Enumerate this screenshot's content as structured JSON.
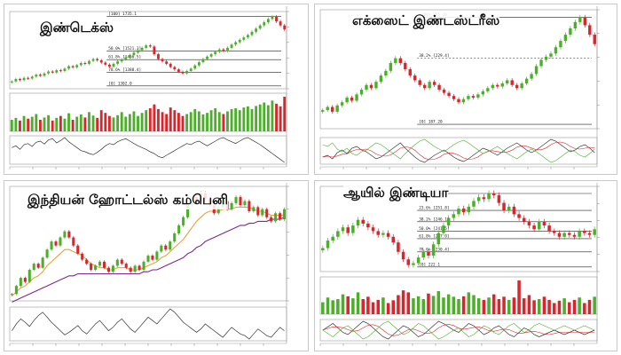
{
  "colors": {
    "up": "#4caf2a",
    "down": "#d9252b",
    "avg1": "#e8a23c",
    "avg2": "#7a2a8a",
    "osc": "#333333",
    "grid": "#dddddd"
  },
  "panels": [
    {
      "title": "இண்டெக்ஸ்",
      "volume": true,
      "indicator": "single",
      "levels": [
        {
          "label": "[100] 1735.1",
          "value": 1735
        },
        {
          "label": "50.0% [1521.3]",
          "value": 1521
        },
        {
          "label": "61.8% [1466.5]",
          "value": 1466
        },
        {
          "label": "78.6% [1388.4]",
          "value": 1388
        },
        {
          "label": "[0] 1302.0",
          "value": 1302
        }
      ]
    },
    {
      "title": "எக்ஸைட் இண்டஸ்ட்ரீஸ்",
      "volume": false,
      "indicator": "multi",
      "levels": [
        {
          "label": "[100] 255.30",
          "value": 255
        },
        {
          "label": "38.2% [229.4]",
          "value": 229
        },
        {
          "label": "[0] 187.20",
          "value": 187
        }
      ]
    },
    {
      "title": "இந்தியன் ஹோட்டல்ஸ் கம்பெனி",
      "volume": false,
      "indicator": "single",
      "levels": []
    },
    {
      "title": "ஆயில் இண்டியா",
      "volume": true,
      "indicator": "multi",
      "levels": [
        {
          "label": "[100] 261.0",
          "value": 261
        },
        {
          "label": "23.6% [251.8]",
          "value": 252
        },
        {
          "label": "38.2% [246.1]",
          "value": 246
        },
        {
          "label": "50.0% [241.5]",
          "value": 241
        },
        {
          "label": "61.8% [237.0]",
          "value": 237
        },
        {
          "label": "78.6% [230.4]",
          "value": 230
        },
        {
          "label": "[0] 222.1",
          "value": 222
        }
      ]
    }
  ],
  "chart_data": [
    {
      "type": "candlestick",
      "title": "இண்டெக்ஸ்",
      "close": [
        1330,
        1345,
        1338,
        1352,
        1348,
        1360,
        1372,
        1365,
        1380,
        1392,
        1385,
        1400,
        1395,
        1410,
        1425,
        1418,
        1432,
        1445,
        1440,
        1458,
        1470,
        1462,
        1448,
        1435,
        1422,
        1440,
        1455,
        1468,
        1480,
        1495,
        1510,
        1525,
        1540,
        1555,
        1548,
        1500,
        1470,
        1455,
        1440,
        1420,
        1405,
        1390,
        1380,
        1395,
        1410,
        1430,
        1450,
        1470,
        1485,
        1500,
        1515,
        1530,
        1520,
        1540,
        1560,
        1575,
        1590,
        1605,
        1620,
        1640,
        1660,
        1680,
        1700,
        1720,
        1735,
        1705,
        1680,
        1655
      ],
      "volume": [
        30,
        35,
        28,
        40,
        33,
        38,
        45,
        30,
        36,
        42,
        28,
        35,
        40,
        33,
        47,
        30,
        38,
        44,
        36,
        50,
        41,
        35,
        55,
        48,
        40,
        36,
        42,
        50,
        38,
        45,
        52,
        40,
        48,
        55,
        60,
        70,
        58,
        50,
        45,
        62,
        55,
        48,
        40,
        45,
        50,
        58,
        52,
        44,
        48,
        55,
        60,
        50,
        45,
        52,
        58,
        60,
        55,
        62,
        65,
        58,
        66,
        70,
        75,
        68,
        80,
        72,
        65,
        90
      ],
      "indicator": [
        55,
        58,
        52,
        60,
        62,
        57,
        64,
        66,
        61,
        68,
        70,
        63,
        67,
        72,
        65,
        60,
        55,
        50,
        48,
        45,
        43,
        47,
        52,
        58,
        62,
        60,
        65,
        68,
        70,
        66,
        62,
        58,
        55,
        52,
        48,
        45,
        40,
        38,
        42,
        46,
        50,
        54,
        58,
        62,
        60,
        64,
        66,
        62,
        58,
        62,
        66,
        70,
        72,
        68,
        65,
        62,
        66,
        70,
        72,
        68,
        64,
        60,
        55,
        50,
        45,
        40,
        35,
        30
      ]
    },
    {
      "type": "candlestick",
      "title": "எக்ஸைட் இண்டஸ்ட்ரீஸ்",
      "close": [
        196,
        198,
        195,
        199,
        201,
        204,
        202,
        206,
        209,
        212,
        210,
        214,
        218,
        221,
        226,
        229,
        226,
        222,
        218,
        215,
        212,
        210,
        214,
        212,
        209,
        207,
        205,
        203,
        201,
        203,
        205,
        204,
        206,
        208,
        210,
        212,
        211,
        213,
        215,
        212,
        210,
        213,
        216,
        219,
        224,
        228,
        230,
        232,
        236,
        240,
        244,
        248,
        252,
        255,
        250,
        244,
        238
      ],
      "indicator": [
        50,
        52,
        48,
        55,
        58,
        54,
        60,
        62,
        58,
        56,
        52,
        48,
        50,
        54,
        58,
        62,
        66,
        60,
        55,
        50,
        46,
        44,
        48,
        52,
        55,
        58,
        54,
        50,
        47,
        45,
        48,
        52,
        56,
        60,
        58,
        55,
        52,
        56,
        60,
        63,
        66,
        62,
        58,
        55,
        58,
        62,
        66,
        70,
        68,
        64,
        60,
        56,
        58,
        62,
        64,
        60,
        55
      ]
    },
    {
      "type": "candlestick",
      "title": "இந்தியன் ஹோட்டல்ஸ் கம்பெனி",
      "close": [
        100,
        104,
        108,
        106,
        112,
        115,
        113,
        118,
        122,
        126,
        124,
        128,
        131,
        128,
        124,
        120,
        117,
        115,
        112,
        114,
        116,
        113,
        111,
        114,
        117,
        115,
        113,
        111,
        114,
        112,
        116,
        119,
        117,
        121,
        124,
        122,
        126,
        130,
        134,
        138,
        144,
        148,
        146,
        150,
        147,
        144,
        140,
        143,
        146,
        142,
        145,
        148,
        144,
        146,
        141,
        143,
        139,
        142,
        138,
        136,
        140,
        137,
        142
      ],
      "average1": [
        99,
        101,
        103,
        104,
        106,
        108,
        109,
        111,
        114,
        116,
        118,
        120,
        122,
        122,
        121,
        120,
        119,
        117,
        115,
        114,
        113,
        113,
        112,
        112,
        113,
        113,
        113,
        112,
        112,
        112,
        113,
        114,
        115,
        116,
        118,
        119,
        121,
        123,
        125,
        127,
        130,
        133,
        136,
        138,
        140,
        141,
        141,
        141,
        142,
        142,
        142,
        143,
        143,
        143,
        143,
        142,
        141,
        141,
        140,
        139,
        139,
        139,
        139
      ],
      "average2": [
        96,
        97,
        98,
        99,
        100,
        101,
        102,
        103,
        104,
        105,
        106,
        107,
        108,
        109,
        109,
        110,
        110,
        110,
        110,
        110,
        110,
        110,
        110,
        110,
        110,
        110,
        110,
        110,
        110,
        110,
        111,
        111,
        112,
        112,
        113,
        114,
        115,
        116,
        117,
        118,
        120,
        121,
        123,
        124,
        126,
        127,
        128,
        129,
        130,
        131,
        132,
        133,
        134,
        134,
        135,
        135,
        136,
        136,
        136,
        137,
        137,
        137,
        138
      ],
      "indicator": [
        50,
        58,
        64,
        60,
        55,
        62,
        68,
        72,
        66,
        60,
        55,
        50,
        45,
        48,
        52,
        56,
        50,
        46,
        52,
        58,
        62,
        56,
        50,
        54,
        60,
        64,
        58,
        52,
        48,
        54,
        60,
        66,
        62,
        58,
        64,
        70,
        76,
        72,
        66,
        60,
        56,
        52,
        48,
        52,
        58,
        54,
        50,
        46,
        42,
        48,
        54,
        50,
        46,
        44,
        40,
        46,
        52,
        48,
        44,
        42,
        48,
        54,
        50
      ]
    },
    {
      "type": "candlestick",
      "title": "ஆயில் இண்டியா",
      "close": [
        232,
        236,
        238,
        241,
        243,
        240,
        244,
        247,
        245,
        243,
        241,
        239,
        240,
        238,
        235,
        230,
        226,
        223,
        224,
        227,
        230,
        228,
        234,
        240,
        244,
        248,
        250,
        253,
        251,
        254,
        257,
        259,
        258,
        261,
        260,
        256,
        252,
        254,
        250,
        248,
        246,
        244,
        242,
        246,
        244,
        241,
        240,
        238,
        240,
        239,
        238,
        241,
        240,
        239,
        242
      ],
      "volume": [
        30,
        42,
        35,
        38,
        50,
        45,
        40,
        55,
        38,
        44,
        30,
        36,
        42,
        28,
        35,
        48,
        60,
        55,
        40,
        45,
        38,
        52,
        46,
        58,
        42,
        50,
        44,
        38,
        45,
        55,
        48,
        40,
        36,
        42,
        50,
        38,
        44,
        36,
        42,
        85,
        40,
        48,
        35,
        38,
        44,
        36,
        28,
        34,
        40,
        30,
        36,
        42,
        28,
        36,
        44
      ],
      "indicator": [
        52,
        55,
        58,
        54,
        50,
        48,
        52,
        56,
        60,
        58,
        54,
        50,
        46,
        44,
        48,
        52,
        56,
        54,
        50,
        46,
        48,
        52,
        56,
        60,
        58,
        55,
        52,
        50,
        54,
        58,
        56,
        52,
        48,
        50,
        54,
        56,
        52,
        48,
        46,
        50,
        54,
        52,
        48,
        46,
        48,
        50,
        52,
        50,
        48,
        50,
        52,
        50,
        48,
        50,
        52
      ]
    }
  ]
}
